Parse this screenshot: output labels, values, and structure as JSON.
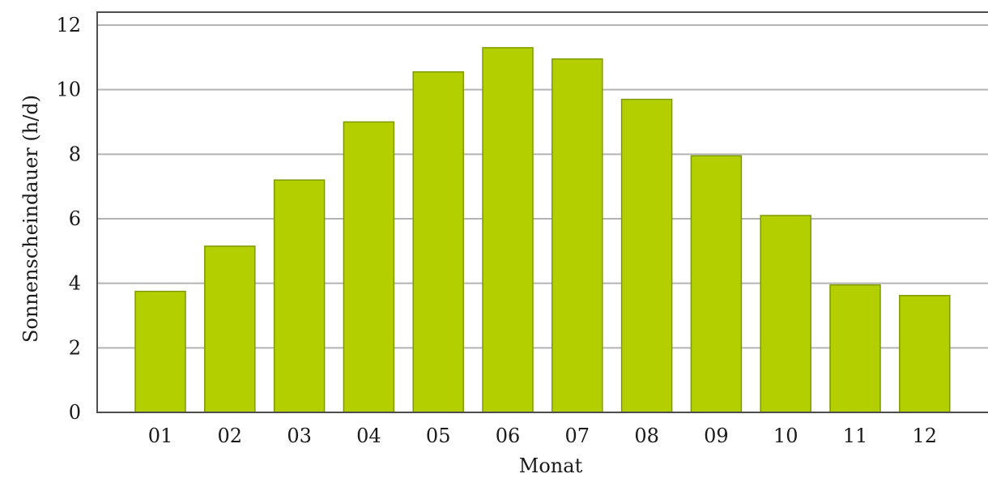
{
  "chart_data": {
    "type": "bar",
    "title": "",
    "xlabel": "Monat",
    "ylabel": "Sonnenscheindauer (h/d)",
    "categories": [
      "01",
      "02",
      "03",
      "04",
      "05",
      "06",
      "07",
      "08",
      "09",
      "10",
      "11",
      "12"
    ],
    "values": [
      3.75,
      5.15,
      7.2,
      9.0,
      10.55,
      11.3,
      10.95,
      9.7,
      7.95,
      6.1,
      3.95,
      3.62
    ],
    "ylim": [
      0,
      12
    ],
    "yticks": [
      "0",
      "2",
      "4",
      "6",
      "8",
      "10",
      "12"
    ],
    "grid": true,
    "legend": "none",
    "colors": {
      "bar_fill": "#b3cf00",
      "bar_edge": "#7f9a00",
      "grid": "#b3b3b3",
      "frame": "#4d4d4d"
    }
  }
}
